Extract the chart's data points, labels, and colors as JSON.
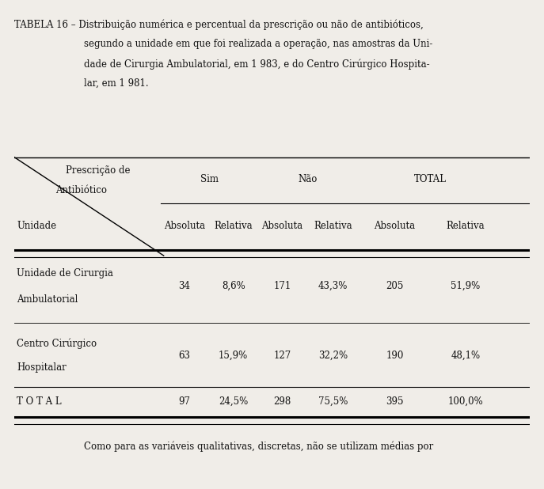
{
  "title_line1": "TABELA 16 – Distribuição numérica e percentual da prescrição ou não de antibióticos,",
  "title_line2": "segundo a unidade em que foi realizada a operação, nas amostras da Uni-",
  "title_line3": "dade de Cirurgia Ambulatorial, em 1 983, e do Centro Cirúrgico Hospita-",
  "title_line4": "lar, em 1 981.",
  "col_groups": [
    "Sim",
    "Não",
    "TOTAL"
  ],
  "col_subheaders": [
    "Absoluta",
    "Relativa",
    "Absoluta",
    "Relativa",
    "Absoluta",
    "Relativa"
  ],
  "row_header_label1": "Prescrição de",
  "row_header_label2": "Antibiótico",
  "row_header_unit": "Unidade",
  "rows": [
    {
      "label_line1": "Unidade de Cirurgia",
      "label_line2": "Ambulatorial",
      "values": [
        "34",
        "8,6%",
        "171",
        "43,3%",
        "205",
        "51,9%"
      ]
    },
    {
      "label_line1": "Centro Cirúrgico",
      "label_line2": "Hospitalar",
      "values": [
        "63",
        "15,9%",
        "127",
        "32,2%",
        "190",
        "48,1%"
      ]
    },
    {
      "label_line1": "T O T A L",
      "label_line2": "",
      "values": [
        "97",
        "24,5%",
        "298",
        "75,5%",
        "395",
        "100,0%"
      ]
    }
  ],
  "footer_text": "Como para as variáveis qualitativas, discretas, não se utilizam médias por",
  "bg_color": "#f0ede8",
  "text_color": "#111111",
  "font_size": 8.5,
  "title_font_size": 8.5
}
